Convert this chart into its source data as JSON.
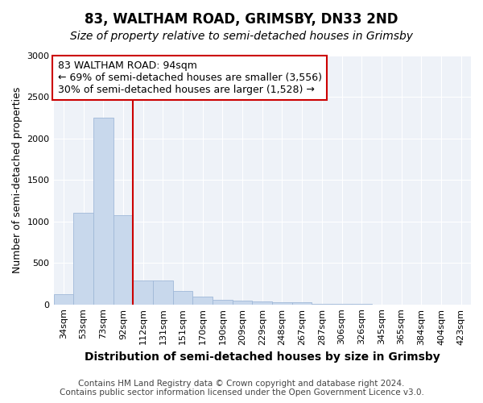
{
  "title": "83, WALTHAM ROAD, GRIMSBY, DN33 2ND",
  "subtitle": "Size of property relative to semi-detached houses in Grimsby",
  "xlabel": "Distribution of semi-detached houses by size in Grimsby",
  "ylabel": "Number of semi-detached properties",
  "categories": [
    "34sqm",
    "53sqm",
    "73sqm",
    "92sqm",
    "112sqm",
    "131sqm",
    "151sqm",
    "170sqm",
    "190sqm",
    "209sqm",
    "229sqm",
    "248sqm",
    "267sqm",
    "287sqm",
    "306sqm",
    "326sqm",
    "345sqm",
    "365sqm",
    "384sqm",
    "404sqm",
    "423sqm"
  ],
  "values": [
    120,
    1100,
    2250,
    1075,
    290,
    285,
    160,
    90,
    55,
    45,
    40,
    30,
    25,
    5,
    3,
    2,
    1,
    1,
    1,
    1,
    1
  ],
  "bar_color": "#c8d8ec",
  "bar_edge_color": "#a0b8d8",
  "red_line_color": "#cc0000",
  "red_line_bar_index": 3,
  "ylim": [
    0,
    3000
  ],
  "yticks": [
    0,
    500,
    1000,
    1500,
    2000,
    2500,
    3000
  ],
  "annotation_line1": "83 WALTHAM ROAD: 94sqm",
  "annotation_line2": "← 69% of semi-detached houses are smaller (3,556)",
  "annotation_line3": "30% of semi-detached houses are larger (1,528) →",
  "annotation_box_facecolor": "#ffffff",
  "annotation_box_edgecolor": "#cc0000",
  "figure_facecolor": "#ffffff",
  "plot_facecolor": "#eef2f8",
  "grid_color": "#ffffff",
  "title_fontsize": 12,
  "subtitle_fontsize": 10,
  "ylabel_fontsize": 9,
  "xlabel_fontsize": 10,
  "tick_fontsize": 8,
  "annotation_fontsize": 9,
  "footer_fontsize": 7.5,
  "footer_line1": "Contains HM Land Registry data © Crown copyright and database right 2024.",
  "footer_line2": "Contains public sector information licensed under the Open Government Licence v3.0."
}
